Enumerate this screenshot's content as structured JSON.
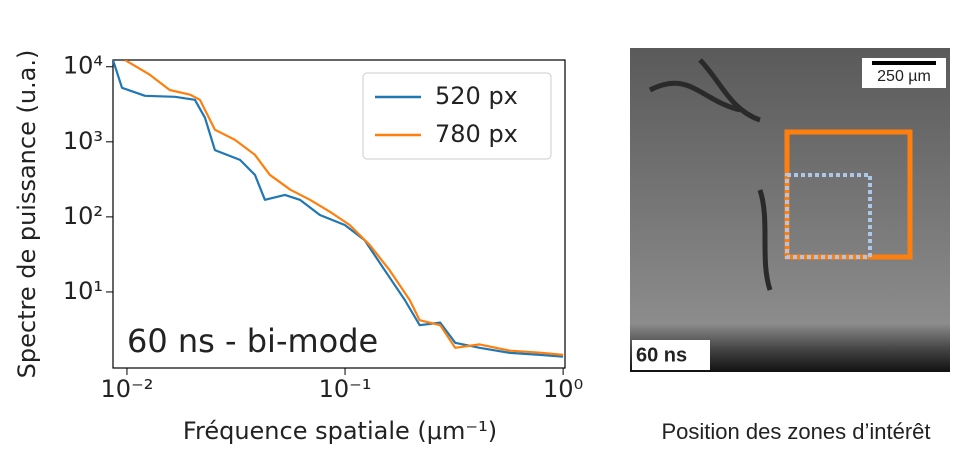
{
  "chart_data": {
    "type": "line",
    "xlabel": "Fréquence spatiale (μm⁻¹)",
    "ylabel": "Spectre de puissance (u.a.)",
    "annotation": "60 ns - bi-mode",
    "xscale": "log",
    "yscale": "log",
    "xlim": [
      0.00863,
      1.02
    ],
    "ylim": [
      0.97,
      12300
    ],
    "xticks": [
      {
        "value": 0.01,
        "label": "10⁻²"
      },
      {
        "value": 0.1,
        "label": "10⁻¹"
      },
      {
        "value": 1,
        "label": "10⁰"
      }
    ],
    "yticks": [
      {
        "value": 10,
        "label": "10¹"
      },
      {
        "value": 100,
        "label": "10²"
      },
      {
        "value": 1000,
        "label": "10³"
      },
      {
        "value": 10000,
        "label": "10⁴"
      }
    ],
    "legend": "upper right",
    "series": [
      {
        "name": "520 px",
        "color": "#1f77b4",
        "x": [
          0.00863,
          0.00949,
          0.0121,
          0.0166,
          0.0205,
          0.0228,
          0.0253,
          0.033,
          0.0386,
          0.0429,
          0.053,
          0.0621,
          0.0767,
          0.0997,
          0.123,
          0.152,
          0.188,
          0.22,
          0.273,
          0.32,
          0.414,
          0.572,
          0.786,
          1.0
        ],
        "values": [
          12300,
          5250,
          4100,
          3980,
          3630,
          2090,
          776,
          575,
          363,
          169,
          196,
          169,
          106,
          78,
          49,
          19.5,
          7.8,
          3.6,
          3.9,
          2.1,
          1.8,
          1.54,
          1.45,
          1.37
        ]
      },
      {
        "name": "780 px",
        "color": "#ff7f0e",
        "x": [
          0.0098,
          0.0127,
          0.0157,
          0.0195,
          0.0216,
          0.0253,
          0.0313,
          0.0386,
          0.0452,
          0.0561,
          0.0691,
          0.0853,
          0.105,
          0.13,
          0.16,
          0.198,
          0.22,
          0.273,
          0.32,
          0.414,
          0.572,
          0.786,
          1.0
        ],
        "values": [
          12300,
          7850,
          4900,
          4240,
          3630,
          1450,
          1060,
          671,
          363,
          230,
          169,
          117,
          78,
          42,
          19.5,
          7.8,
          4.2,
          3.6,
          1.8,
          2.0,
          1.65,
          1.55,
          1.45
        ]
      }
    ]
  },
  "image": {
    "scale_bar": "250 µm",
    "label": "60 ns",
    "caption": "Position des zones d’intérêt"
  }
}
